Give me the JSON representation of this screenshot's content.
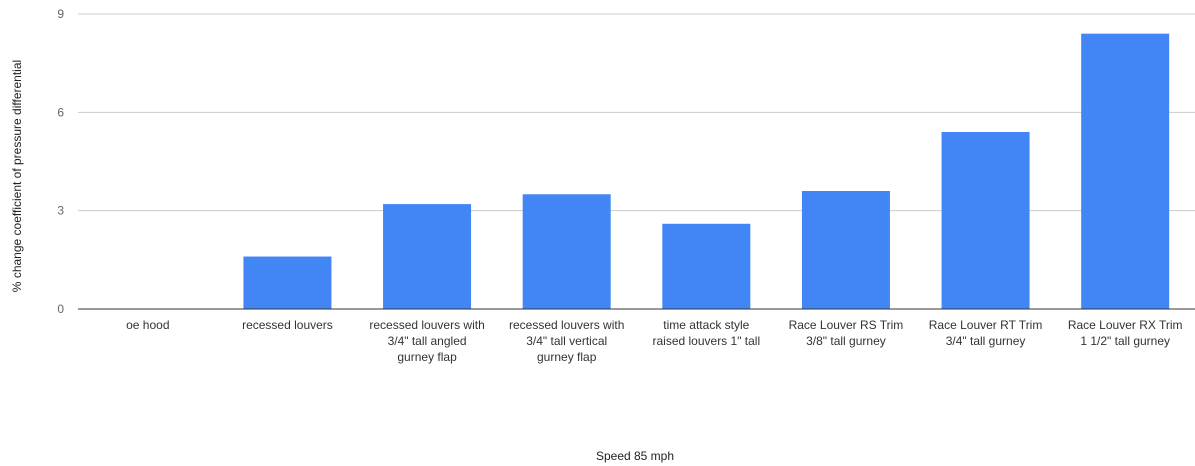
{
  "chart_data": {
    "type": "bar",
    "title": "",
    "xlabel": "Speed 85 mph",
    "ylabel": "% change coefficient of pressure differential",
    "ylim": [
      0,
      9
    ],
    "yticks": [
      "0",
      "3",
      "6",
      "9"
    ],
    "grid": true,
    "legend": "none",
    "bar_color": "#4285F4",
    "gridline_color": "#cccccc",
    "baseline_color": "#333333",
    "categories": [
      [
        "oe hood"
      ],
      [
        "recessed louvers"
      ],
      [
        "recessed louvers with",
        "3/4\" tall angled",
        "gurney flap"
      ],
      [
        "recessed louvers with",
        "3/4\" tall vertical",
        "gurney flap"
      ],
      [
        "time attack style",
        "raised louvers 1\" tall"
      ],
      [
        "Race Louver RS Trim",
        "3/8\" tall gurney"
      ],
      [
        "Race Louver RT Trim",
        "3/4\" tall gurney"
      ],
      [
        "Race Louver RX Trim",
        "1 1/2\" tall gurney"
      ]
    ],
    "values": [
      0,
      1.6,
      3.2,
      3.5,
      2.6,
      3.6,
      5.4,
      8.4
    ]
  }
}
